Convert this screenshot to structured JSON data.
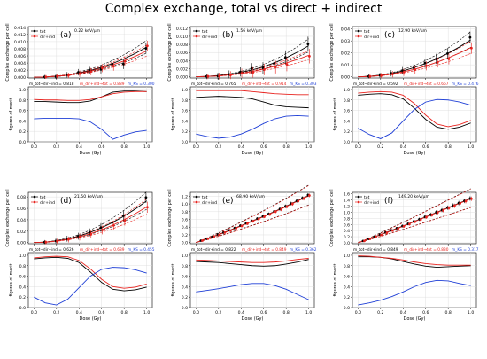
{
  "title": "Complex exchange, total vs direct + indirect",
  "colors": {
    "tot": "#000000",
    "dir": "#e8231f",
    "mq": "#1f3fd6",
    "grid": "#d9d9d9",
    "panel": "#ffffff"
  },
  "legend": {
    "tot": "tot",
    "dir": "dir+ind"
  },
  "labels": {
    "exchange_ylabel": "Complex exchange per cell",
    "fom_ylabel": "figures of merit",
    "xlabel": "Dose (Gy)",
    "m_tot_label": "m_tot→dir+ind",
    "m_dir_label": "m_dir+ind→tot",
    "m_kl_label": "m_KS"
  },
  "chart_data": [
    {
      "id": "a",
      "letter": "(a)",
      "let": "0.22 keV/μm",
      "type": "line",
      "x": [
        0,
        0.1,
        0.2,
        0.3,
        0.4,
        0.5,
        0.6,
        0.7,
        0.8,
        0.9,
        1.0
      ],
      "top": {
        "ylim": [
          -0.0002,
          0.0142
        ],
        "yticks": [
          0,
          0.002,
          0.004,
          0.006,
          0.008,
          0.01,
          0.012,
          0.014
        ],
        "tot": [
          0,
          0.0001,
          0.0003,
          0.0006,
          0.0012,
          0.0019,
          0.0028,
          0.0039,
          0.0052,
          0.0067,
          0.0085
        ],
        "dir": [
          0,
          0.0001,
          0.0003,
          0.0006,
          0.0011,
          0.0017,
          0.0025,
          0.0035,
          0.0046,
          0.0059,
          0.0074
        ],
        "pts_x": [
          0.1,
          0.2,
          0.3,
          0.4,
          0.5,
          0.6,
          0.7,
          0.8,
          1.0
        ],
        "tot_pts": [
          0.0001,
          0.0002,
          0.0007,
          0.0014,
          0.0019,
          0.0022,
          0.0037,
          0.0037,
          0.0081
        ],
        "dir_pts": [
          0.0001,
          0.0003,
          0.0005,
          0.001,
          0.0016,
          0.0026,
          0.0031,
          0.0045,
          0.0088
        ],
        "err": 0.0012
      },
      "bottom": {
        "ylim": [
          0,
          1.05
        ],
        "yticks": [
          0,
          0.2,
          0.4,
          0.6,
          0.8,
          1.0
        ],
        "m_tot": 0.818,
        "m_dir": 0.889,
        "m_kl": 0.3,
        "tot_curve": [
          0.77,
          0.77,
          0.76,
          0.75,
          0.75,
          0.78,
          0.86,
          0.95,
          0.97,
          0.97,
          0.96
        ],
        "dir_curve": [
          0.81,
          0.8,
          0.8,
          0.79,
          0.79,
          0.81,
          0.86,
          0.92,
          0.95,
          0.96,
          0.96
        ],
        "kl_curve": [
          0.44,
          0.45,
          0.45,
          0.45,
          0.44,
          0.38,
          0.24,
          0.05,
          0.13,
          0.19,
          0.22
        ]
      }
    },
    {
      "id": "b",
      "letter": "(b)",
      "let": "1.56 keV/μm",
      "type": "line",
      "x": [
        0,
        0.1,
        0.2,
        0.3,
        0.4,
        0.5,
        0.6,
        0.7,
        0.8,
        0.9,
        1.0
      ],
      "top": {
        "ylim": [
          -0.0003,
          0.0124
        ],
        "yticks": [
          0,
          0.002,
          0.004,
          0.006,
          0.008,
          0.01,
          0.012
        ],
        "tot": [
          0,
          0.0001,
          0.0003,
          0.0006,
          0.0011,
          0.0017,
          0.0025,
          0.0035,
          0.0047,
          0.0061,
          0.0077
        ],
        "dir": [
          0,
          0.0001,
          0.0002,
          0.0005,
          0.0008,
          0.0013,
          0.0019,
          0.0026,
          0.0034,
          0.0043,
          0.0053
        ],
        "pts_x": [
          0.1,
          0.2,
          0.3,
          0.4,
          0.5,
          0.6,
          0.7,
          0.8,
          1.0
        ],
        "tot_pts": [
          0.0001,
          0.0002,
          0.0006,
          0.0012,
          0.0021,
          0.0022,
          0.0033,
          0.0048,
          0.0081
        ],
        "dir_pts": [
          0.0001,
          0.0002,
          0.0004,
          0.0009,
          0.0011,
          0.0018,
          0.0024,
          0.0031,
          0.0051
        ],
        "err": 0.0015
      },
      "bottom": {
        "ylim": [
          0,
          1.05
        ],
        "yticks": [
          0,
          0.2,
          0.4,
          0.6,
          0.8,
          1.0
        ],
        "m_tot": 0.765,
        "m_dir": 0.914,
        "m_kl": 0.303,
        "tot_curve": [
          0.85,
          0.86,
          0.87,
          0.86,
          0.85,
          0.82,
          0.76,
          0.7,
          0.67,
          0.66,
          0.65
        ],
        "dir_curve": [
          0.98,
          0.98,
          0.98,
          0.98,
          0.98,
          0.96,
          0.94,
          0.92,
          0.91,
          0.9,
          0.9
        ],
        "kl_curve": [
          0.15,
          0.1,
          0.07,
          0.09,
          0.15,
          0.24,
          0.35,
          0.44,
          0.49,
          0.5,
          0.49
        ]
      }
    },
    {
      "id": "c",
      "letter": "(c)",
      "let": "12.90 keV/μm",
      "type": "line",
      "x": [
        0,
        0.1,
        0.2,
        0.3,
        0.4,
        0.5,
        0.6,
        0.7,
        0.8,
        0.9,
        1.0
      ],
      "top": {
        "ylim": [
          -0.001,
          0.042
        ],
        "yticks": [
          0,
          0.01,
          0.02,
          0.03,
          0.04
        ],
        "tot": [
          0,
          0.0004,
          0.0013,
          0.0028,
          0.005,
          0.0078,
          0.0112,
          0.0152,
          0.0198,
          0.025,
          0.031
        ],
        "dir": [
          0,
          0.0003,
          0.0011,
          0.0023,
          0.0041,
          0.0063,
          0.009,
          0.0122,
          0.0158,
          0.0199,
          0.0244
        ],
        "pts_x": [
          0.1,
          0.2,
          0.3,
          0.4,
          0.5,
          0.6,
          0.7,
          0.8,
          1.0
        ],
        "tot_pts": [
          0.0004,
          0.0012,
          0.003,
          0.0052,
          0.0075,
          0.0115,
          0.015,
          0.0195,
          0.033
        ],
        "dir_pts": [
          0.0003,
          0.001,
          0.0022,
          0.0038,
          0.006,
          0.0092,
          0.012,
          0.015,
          0.024
        ],
        "err": 0.004
      },
      "bottom": {
        "ylim": [
          0,
          1.05
        ],
        "yticks": [
          0,
          0.2,
          0.4,
          0.6,
          0.8,
          1.0
        ],
        "m_tot": 0.592,
        "m_dir": 0.667,
        "m_kl": 0.476,
        "tot_curve": [
          0.89,
          0.91,
          0.92,
          0.9,
          0.82,
          0.64,
          0.43,
          0.28,
          0.24,
          0.28,
          0.36
        ],
        "dir_curve": [
          0.93,
          0.95,
          0.96,
          0.95,
          0.89,
          0.73,
          0.51,
          0.34,
          0.29,
          0.33,
          0.41
        ],
        "kl_curve": [
          0.26,
          0.14,
          0.06,
          0.17,
          0.4,
          0.62,
          0.76,
          0.81,
          0.8,
          0.76,
          0.7
        ]
      }
    },
    {
      "id": "d",
      "letter": "(d)",
      "let": "21.50 keV/μm",
      "type": "line",
      "x": [
        0,
        0.1,
        0.2,
        0.3,
        0.4,
        0.5,
        0.6,
        0.7,
        0.8,
        0.9,
        1.0
      ],
      "top": {
        "ylim": [
          -0.002,
          0.088
        ],
        "yticks": [
          0,
          0.02,
          0.04,
          0.06,
          0.08
        ],
        "tot": [
          0,
          0.0008,
          0.003,
          0.0065,
          0.0115,
          0.018,
          0.026,
          0.0355,
          0.0465,
          0.059,
          0.073
        ],
        "dir": [
          0,
          0.0007,
          0.0026,
          0.0057,
          0.01,
          0.0156,
          0.0225,
          0.0306,
          0.04,
          0.0507,
          0.0626
        ],
        "pts_x": [
          0.1,
          0.2,
          0.3,
          0.4,
          0.5,
          0.6,
          0.7,
          0.8,
          1.0
        ],
        "tot_pts": [
          0.0008,
          0.0028,
          0.0068,
          0.0112,
          0.018,
          0.0265,
          0.035,
          0.047,
          0.079
        ],
        "dir_pts": [
          0.0007,
          0.0024,
          0.0055,
          0.0098,
          0.015,
          0.022,
          0.03,
          0.039,
          0.062
        ],
        "err": 0.008
      },
      "bottom": {
        "ylim": [
          0,
          1.05
        ],
        "yticks": [
          0,
          0.2,
          0.4,
          0.6,
          0.8,
          1.0
        ],
        "m_tot": 0.626,
        "m_dir": 0.689,
        "m_kl": 0.455,
        "tot_curve": [
          0.93,
          0.95,
          0.96,
          0.94,
          0.86,
          0.68,
          0.48,
          0.35,
          0.32,
          0.34,
          0.39
        ],
        "dir_curve": [
          0.95,
          0.97,
          0.98,
          0.97,
          0.9,
          0.74,
          0.54,
          0.4,
          0.37,
          0.39,
          0.45
        ],
        "kl_curve": [
          0.2,
          0.09,
          0.05,
          0.16,
          0.38,
          0.6,
          0.73,
          0.77,
          0.76,
          0.72,
          0.66
        ]
      }
    },
    {
      "id": "e",
      "letter": "(e)",
      "let": "68.90 keV/μm",
      "type": "line",
      "x": [
        0,
        0.1,
        0.2,
        0.3,
        0.4,
        0.5,
        0.6,
        0.7,
        0.8,
        0.9,
        1.0
      ],
      "top": {
        "ylim": [
          -0.03,
          1.3
        ],
        "yticks": [
          0,
          0.2,
          0.4,
          0.6,
          0.8,
          1.0,
          1.2
        ],
        "tot": [
          0,
          0.1,
          0.21,
          0.32,
          0.44,
          0.56,
          0.68,
          0.81,
          0.94,
          1.08,
          1.22
        ],
        "dir": [
          0,
          0.1,
          0.2,
          0.31,
          0.43,
          0.55,
          0.67,
          0.8,
          0.93,
          1.07,
          1.21
        ],
        "pts_x": [
          0.05,
          0.1,
          0.15,
          0.2,
          0.25,
          0.3,
          0.35,
          0.4,
          0.45,
          0.5,
          0.55,
          0.6,
          0.65,
          0.7,
          0.75,
          0.8,
          0.85,
          0.9,
          0.95,
          1.0
        ],
        "tot_pts": [
          0.05,
          0.1,
          0.15,
          0.21,
          0.26,
          0.32,
          0.38,
          0.44,
          0.5,
          0.56,
          0.62,
          0.68,
          0.74,
          0.81,
          0.87,
          0.94,
          1.01,
          1.08,
          1.15,
          1.23
        ],
        "dir_pts": [
          0.05,
          0.1,
          0.15,
          0.2,
          0.26,
          0.31,
          0.37,
          0.43,
          0.49,
          0.55,
          0.61,
          0.67,
          0.73,
          0.8,
          0.86,
          0.93,
          1.0,
          1.07,
          1.14,
          1.22
        ],
        "err": 0.04
      },
      "bottom": {
        "ylim": [
          0,
          1.05
        ],
        "yticks": [
          0,
          0.2,
          0.4,
          0.6,
          0.8,
          1.0
        ],
        "m_tot": 0.822,
        "m_dir": 0.849,
        "m_kl": 0.362,
        "tot_curve": [
          0.88,
          0.87,
          0.86,
          0.84,
          0.82,
          0.8,
          0.79,
          0.8,
          0.83,
          0.87,
          0.92
        ],
        "dir_curve": [
          0.91,
          0.9,
          0.89,
          0.88,
          0.87,
          0.86,
          0.86,
          0.87,
          0.89,
          0.92,
          0.94
        ],
        "kl_curve": [
          0.3,
          0.33,
          0.36,
          0.4,
          0.44,
          0.46,
          0.46,
          0.42,
          0.35,
          0.25,
          0.15
        ]
      }
    },
    {
      "id": "f",
      "letter": "(f)",
      "let": "149.20 keV/μm",
      "type": "line",
      "x": [
        0,
        0.1,
        0.2,
        0.3,
        0.4,
        0.5,
        0.6,
        0.7,
        0.8,
        0.9,
        1.0
      ],
      "top": {
        "ylim": [
          -0.03,
          1.65
        ],
        "yticks": [
          0,
          0.2,
          0.4,
          0.6,
          0.8,
          1.0,
          1.2,
          1.4,
          1.6
        ],
        "tot": [
          0,
          0.13,
          0.27,
          0.41,
          0.55,
          0.7,
          0.85,
          1.0,
          1.15,
          1.3,
          1.45
        ],
        "dir": [
          0,
          0.13,
          0.26,
          0.4,
          0.54,
          0.69,
          0.84,
          0.99,
          1.14,
          1.29,
          1.44
        ],
        "pts_x": [
          0.05,
          0.1,
          0.15,
          0.2,
          0.25,
          0.3,
          0.35,
          0.4,
          0.45,
          0.5,
          0.55,
          0.6,
          0.65,
          0.7,
          0.75,
          0.8,
          0.85,
          0.9,
          0.95,
          1.0
        ],
        "tot_pts": [
          0.06,
          0.13,
          0.2,
          0.27,
          0.34,
          0.41,
          0.48,
          0.55,
          0.62,
          0.7,
          0.77,
          0.85,
          0.92,
          1.0,
          1.07,
          1.15,
          1.22,
          1.3,
          1.37,
          1.45
        ],
        "dir_pts": [
          0.06,
          0.13,
          0.19,
          0.26,
          0.33,
          0.4,
          0.47,
          0.54,
          0.61,
          0.69,
          0.76,
          0.84,
          0.91,
          0.99,
          1.06,
          1.14,
          1.21,
          1.29,
          1.36,
          1.44
        ],
        "err": 0.06
      },
      "bottom": {
        "ylim": [
          0,
          1.05
        ],
        "yticks": [
          0,
          0.2,
          0.4,
          0.6,
          0.8,
          1.0
        ],
        "m_tot": 0.849,
        "m_dir": 0.83,
        "m_kl": 0.317,
        "tot_curve": [
          0.97,
          0.97,
          0.96,
          0.93,
          0.88,
          0.83,
          0.79,
          0.77,
          0.78,
          0.79,
          0.8
        ],
        "dir_curve": [
          0.99,
          0.98,
          0.96,
          0.94,
          0.91,
          0.87,
          0.84,
          0.82,
          0.81,
          0.81,
          0.81
        ],
        "kl_curve": [
          0.05,
          0.09,
          0.14,
          0.21,
          0.3,
          0.4,
          0.48,
          0.52,
          0.51,
          0.46,
          0.42
        ]
      }
    }
  ]
}
